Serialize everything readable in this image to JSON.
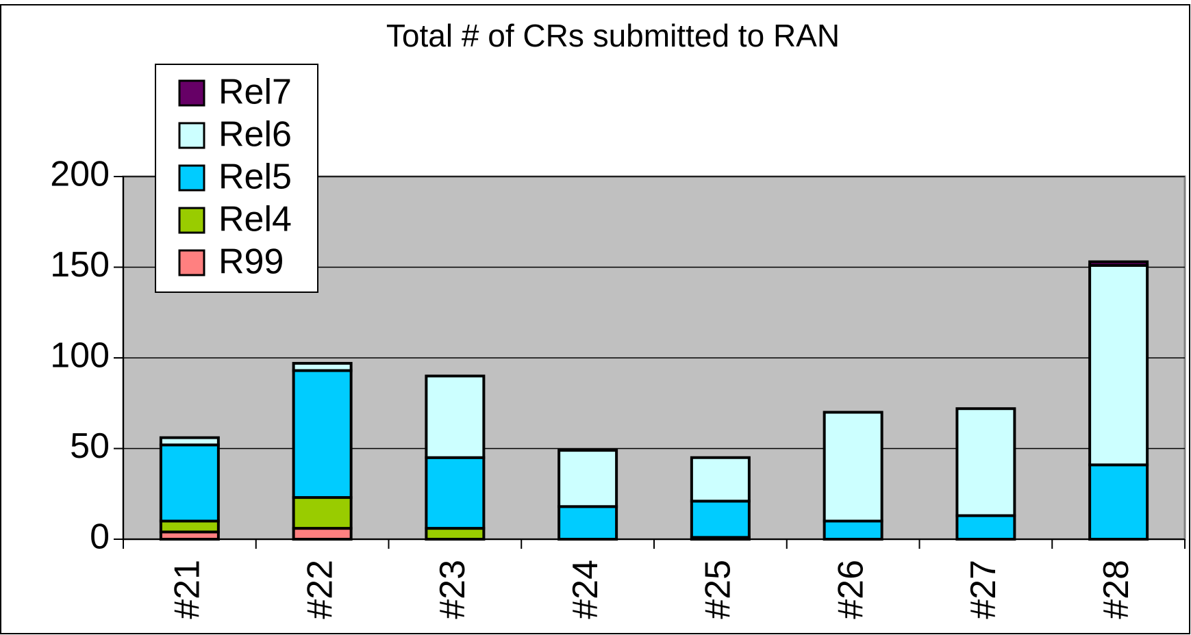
{
  "chart_data": {
    "type": "stacked_bar",
    "title": "Total # of CRs submitted to RAN",
    "categories": [
      "#21",
      "#22",
      "#23",
      "#24",
      "#25",
      "#26",
      "#27",
      "#28"
    ],
    "series": [
      {
        "name": "R99",
        "color": "#ff8080",
        "values": [
          4,
          6,
          0,
          0,
          0,
          0,
          0,
          0
        ]
      },
      {
        "name": "Rel4",
        "color": "#99cc00",
        "values": [
          6,
          17,
          6,
          0,
          1,
          0,
          0,
          0
        ]
      },
      {
        "name": "Rel5",
        "color": "#00ccff",
        "values": [
          42,
          70,
          39,
          18,
          20,
          10,
          13,
          41
        ]
      },
      {
        "name": "Rel6",
        "color": "#ccffff",
        "values": [
          4,
          4,
          45,
          31,
          24,
          60,
          59,
          110
        ]
      },
      {
        "name": "Rel7",
        "color": "#660066",
        "values": [
          0,
          0,
          0,
          0,
          0,
          0,
          0,
          2
        ]
      }
    ],
    "ylim": [
      0,
      200
    ],
    "yticks": [
      0,
      50,
      100,
      150,
      200
    ],
    "grid": true,
    "legend": "upper left"
  }
}
